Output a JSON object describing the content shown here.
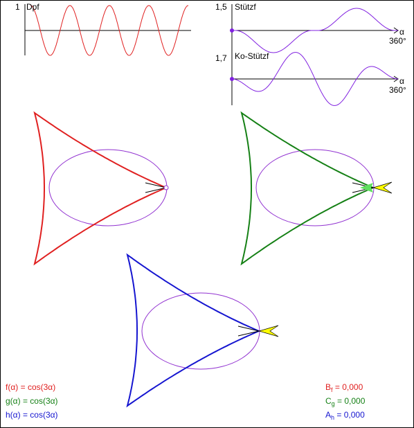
{
  "graphs": {
    "dpf": {
      "label": "Dpf",
      "max_label": "1",
      "color": "#e02020",
      "cycles": 4
    },
    "stuetz": {
      "label": "Stützf",
      "max_label": "1,5",
      "color": "#8020e0",
      "alpha_label": "α",
      "end_label": "360°"
    },
    "ko_stuetz": {
      "label": "Ko-Stützf",
      "max_label": "1,7",
      "color": "#8020e0",
      "alpha_label": "α",
      "end_label": "360°"
    }
  },
  "figures": [
    {
      "name": "red",
      "curve_color": "#e02020",
      "arrow_color": "#e02020",
      "ellipse_color": "#9030d0",
      "arrowhead_fill": "#ffffff"
    },
    {
      "name": "green",
      "curve_color": "#158015",
      "arrow_color": "#158015",
      "ellipse_color": "#9030d0",
      "arrowhead_fill": "#ffff00"
    },
    {
      "name": "blue",
      "curve_color": "#1515d0",
      "arrow_color": "#1515d0",
      "ellipse_color": "#9030d0",
      "arrowhead_fill": "#ffff00"
    }
  ],
  "formulas": [
    {
      "text": "f(α) = cos(3α)",
      "color": "#e02020"
    },
    {
      "text": "g(α) = cos(3α)",
      "color": "#158015"
    },
    {
      "text": "h(α) = cos(3α)",
      "color": "#1515d0"
    }
  ],
  "values": [
    {
      "sym": "B",
      "sub": "f",
      "val": " = 0,000",
      "color": "#e02020"
    },
    {
      "sym": "C",
      "sub": "g",
      "val": " = 0,000",
      "color": "#158015"
    },
    {
      "sym": "A",
      "sub": "h",
      "val": " = 0,000",
      "color": "#1515d0"
    }
  ]
}
